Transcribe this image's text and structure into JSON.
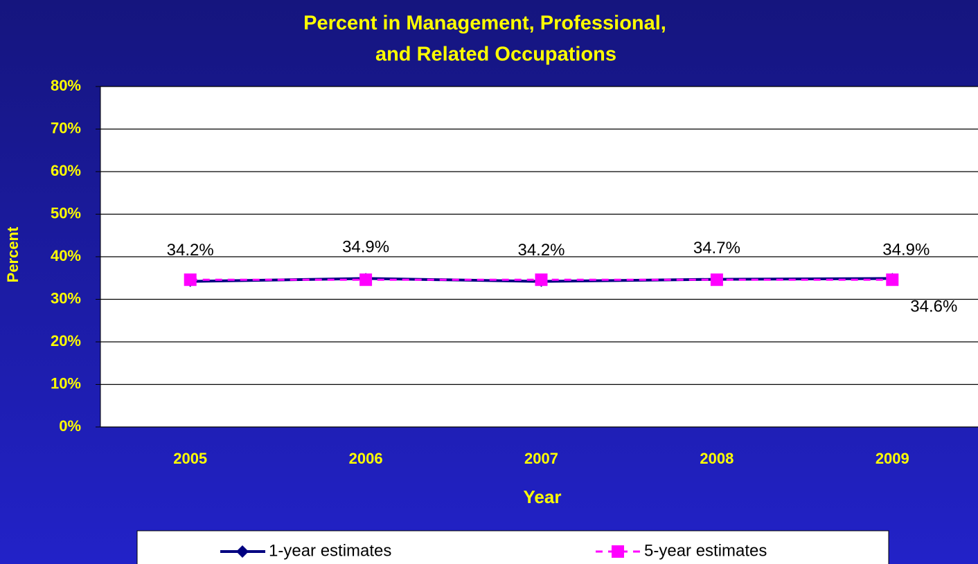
{
  "chart_data": {
    "type": "line",
    "title": [
      "Percent in Management, Professional,",
      "and Related Occupations"
    ],
    "x_label": "Year",
    "y_label": "Percent",
    "categories": [
      "2005",
      "2006",
      "2007",
      "2008",
      "2009"
    ],
    "series": [
      {
        "name": "1-year estimates",
        "color": "#000080",
        "marker": "diamond",
        "dash": false,
        "values": [
          34.2,
          34.9,
          34.2,
          34.7,
          34.9
        ],
        "value_labels": [
          "34.2%",
          "34.9%",
          "34.2%",
          "34.7%",
          "34.9%"
        ]
      },
      {
        "name": "5-year estimates",
        "color": "#ff00ff",
        "marker": "square",
        "dash": true,
        "values": [
          34.6,
          34.6,
          34.6,
          34.6,
          34.6
        ],
        "value_labels": [
          null,
          null,
          null,
          null,
          "34.6%"
        ]
      }
    ],
    "ylim": [
      0,
      80
    ],
    "yticks": [
      {
        "value": 0,
        "label": "0%"
      },
      {
        "value": 10,
        "label": "10%"
      },
      {
        "value": 20,
        "label": "20%"
      },
      {
        "value": 30,
        "label": "30%"
      },
      {
        "value": 40,
        "label": "40%"
      },
      {
        "value": 50,
        "label": "50%"
      },
      {
        "value": 60,
        "label": "60%"
      },
      {
        "value": 70,
        "label": "70%"
      },
      {
        "value": 80,
        "label": "80%"
      }
    ],
    "grid": true,
    "legend": "bottom"
  }
}
